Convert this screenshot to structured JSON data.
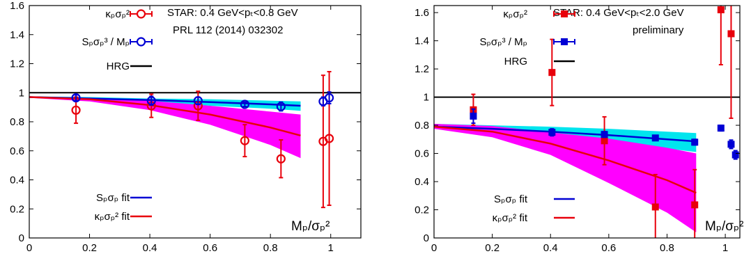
{
  "chart_data": [
    {
      "type": "scatter",
      "annotation_lines": [
        "STAR: 0.4 GeV<pₜ<0.8 GeV",
        "PRL 112 (2014) 032302"
      ],
      "xlim": [
        0,
        1.1
      ],
      "ylim": [
        0,
        1.6
      ],
      "xticks": [
        "0",
        "0.2",
        "0.4",
        "0.6",
        "0.8",
        "1"
      ],
      "yticks": [
        "0",
        "0.2",
        "0.4",
        "0.6",
        "0.8",
        "1",
        "1.2",
        "1.4",
        "1.6"
      ],
      "xlabel": "Mₚ/σₚ²",
      "hrg_value": 1.0,
      "marker": "circle",
      "legend": {
        "kappa_label": "κₚσₚ²",
        "skew_label": "Sₚσₚ³ / Mₚ",
        "hrg_label": "HRG",
        "skew_fit_label": "Sₚσₚ fit",
        "kappa_fit_label": "κₚσₚ² fit"
      },
      "series": [
        {
          "id": "kappa",
          "color": "#e8000b",
          "points": [
            {
              "x": 0.155,
              "y": 0.88,
              "err": 0.09
            },
            {
              "x": 0.405,
              "y": 0.91,
              "err": 0.08
            },
            {
              "x": 0.56,
              "y": 0.91,
              "err": 0.1
            },
            {
              "x": 0.715,
              "y": 0.67,
              "err": 0.11
            },
            {
              "x": 0.835,
              "y": 0.545,
              "err": 0.13
            },
            {
              "x": 0.975,
              "y": 0.665,
              "err": 0.455
            },
            {
              "x": 0.995,
              "y": 0.685,
              "err": 0.46
            }
          ]
        },
        {
          "id": "skew",
          "color": "#0000d4",
          "points": [
            {
              "x": 0.155,
              "y": 0.965,
              "err": 0.02
            },
            {
              "x": 0.405,
              "y": 0.945,
              "err": 0.03
            },
            {
              "x": 0.56,
              "y": 0.945,
              "err": 0.025
            },
            {
              "x": 0.715,
              "y": 0.92,
              "err": 0.015
            },
            {
              "x": 0.835,
              "y": 0.905,
              "err": 0.03
            },
            {
              "x": 0.975,
              "y": 0.94,
              "err": 0.03
            },
            {
              "x": 0.995,
              "y": 0.965,
              "err": 0.04
            }
          ]
        }
      ],
      "fits": {
        "skew_fit": {
          "color": "#0000d4",
          "band_color": "#00e5ee",
          "x": [
            0,
            0.2,
            0.4,
            0.6,
            0.8,
            0.9
          ],
          "y": [
            0.97,
            0.96,
            0.95,
            0.935,
            0.92,
            0.91
          ],
          "band_low": [
            0.965,
            0.95,
            0.935,
            0.91,
            0.89,
            0.875
          ],
          "band_high": [
            0.975,
            0.97,
            0.96,
            0.955,
            0.945,
            0.94
          ]
        },
        "kappa_fit": {
          "color": "#e8000b",
          "band_color": "#ff00ff",
          "x": [
            0,
            0.2,
            0.4,
            0.6,
            0.8,
            0.9
          ],
          "y": [
            0.97,
            0.955,
            0.915,
            0.85,
            0.76,
            0.705
          ],
          "band_low": [
            0.965,
            0.94,
            0.88,
            0.78,
            0.64,
            0.55
          ],
          "band_high": [
            0.975,
            0.965,
            0.945,
            0.91,
            0.87,
            0.85
          ]
        }
      }
    },
    {
      "type": "scatter",
      "annotation_lines": [
        "STAR: 0.4 GeV<pₜ<2.0 GeV",
        "preliminary"
      ],
      "xlim": [
        0,
        1.05
      ],
      "ylim": [
        0,
        1.65
      ],
      "xticks": [
        "0",
        "0.2",
        "0.4",
        "0.6",
        "0.8",
        "1"
      ],
      "yticks": [
        "0",
        "0.2",
        "0.4",
        "0.6",
        "0.8",
        "1",
        "1.2",
        "1.4",
        "1.6"
      ],
      "xlabel": "Mₚ/σₚ²",
      "hrg_value": 1.0,
      "marker": "square",
      "legend": {
        "kappa_label": "κₚσₚ²",
        "skew_label": "Sₚσₚ³ / Mₚ",
        "hrg_label": "HRG",
        "skew_fit_label": "Sₚσₚ fit",
        "kappa_fit_label": "κₚσₚ² fit"
      },
      "series": [
        {
          "id": "kappa",
          "color": "#e8000b",
          "points": [
            {
              "x": 0.135,
              "y": 0.91,
              "err": 0.11
            },
            {
              "x": 0.405,
              "y": 1.175,
              "err": 0.235
            },
            {
              "x": 0.585,
              "y": 0.69,
              "err": 0.17
            },
            {
              "x": 0.76,
              "y": 0.22,
              "err": 0.23
            },
            {
              "x": 0.895,
              "y": 0.235,
              "err": 0.25
            },
            {
              "x": 0.985,
              "y": 1.62,
              "err": 0.39
            },
            {
              "x": 1.02,
              "y": 1.45,
              "err": 0.6
            }
          ]
        },
        {
          "id": "skew",
          "color": "#0000d4",
          "points": [
            {
              "x": 0.135,
              "y": 0.865,
              "err": 0.05
            },
            {
              "x": 0.405,
              "y": 0.75,
              "err": 0.025
            },
            {
              "x": 0.585,
              "y": 0.735,
              "err": 0.02
            },
            {
              "x": 0.76,
              "y": 0.71,
              "err": 0.018
            },
            {
              "x": 0.895,
              "y": 0.68,
              "err": 0.02
            },
            {
              "x": 0.985,
              "y": 0.78,
              "err": 0.02
            },
            {
              "x": 1.02,
              "y": 0.665,
              "err": 0.03
            },
            {
              "x": 1.035,
              "y": 0.59,
              "err": 0.03
            }
          ]
        }
      ],
      "fits": {
        "skew_fit": {
          "color": "#0000d4",
          "band_color": "#00e5ee",
          "x": [
            0,
            0.2,
            0.4,
            0.6,
            0.8,
            0.9
          ],
          "y": [
            0.79,
            0.775,
            0.755,
            0.73,
            0.7,
            0.685
          ],
          "band_low": [
            0.775,
            0.755,
            0.725,
            0.68,
            0.635,
            0.61
          ],
          "band_high": [
            0.81,
            0.8,
            0.79,
            0.775,
            0.755,
            0.745
          ]
        },
        "kappa_fit": {
          "color": "#e8000b",
          "band_color": "#ff00ff",
          "x": [
            0,
            0.2,
            0.4,
            0.6,
            0.8,
            0.9
          ],
          "y": [
            0.79,
            0.755,
            0.67,
            0.55,
            0.41,
            0.32
          ],
          "band_low": [
            0.775,
            0.715,
            0.59,
            0.39,
            0.18,
            0.04
          ],
          "band_high": [
            0.81,
            0.795,
            0.75,
            0.705,
            0.64,
            0.6
          ]
        }
      }
    }
  ]
}
